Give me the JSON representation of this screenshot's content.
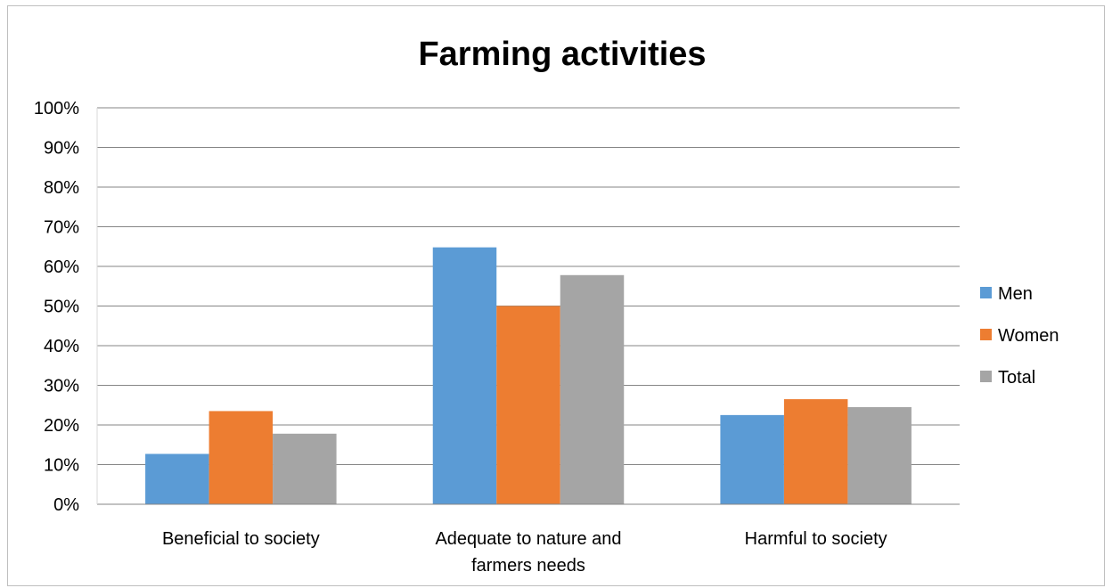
{
  "chart_data": {
    "type": "bar",
    "title": "Farming activities",
    "categories": [
      [
        "Beneficial to society"
      ],
      [
        "Adequate to nature and",
        "farmers needs"
      ],
      [
        "Harmful to society"
      ]
    ],
    "series": [
      {
        "name": "Men",
        "color": "#5b9bd5",
        "values": [
          12.7,
          64.8,
          22.5
        ]
      },
      {
        "name": "Women",
        "color": "#ed7d31",
        "values": [
          23.5,
          50.0,
          26.5
        ]
      },
      {
        "name": "Total",
        "color": "#a5a5a5",
        "values": [
          17.8,
          57.8,
          24.5
        ]
      }
    ],
    "yticks": [
      "0%",
      "10%",
      "20%",
      "30%",
      "40%",
      "50%",
      "60%",
      "70%",
      "80%",
      "90%",
      "100%"
    ],
    "ylim": [
      0,
      100
    ],
    "grid": true,
    "legend_position": "right"
  }
}
